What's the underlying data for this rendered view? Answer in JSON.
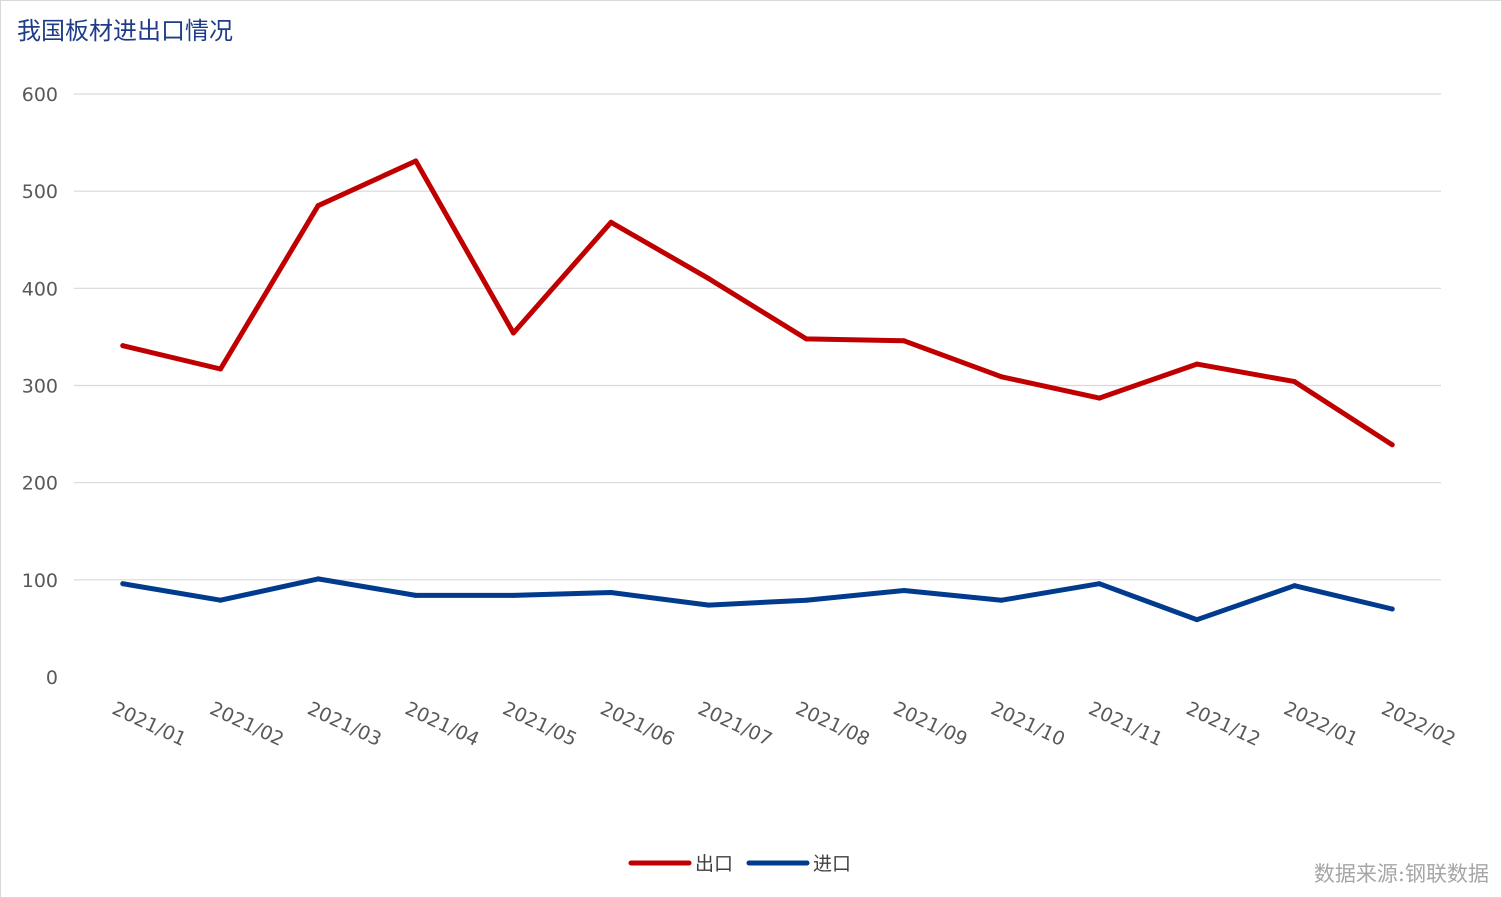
{
  "chart_data": {
    "type": "line",
    "title": "我国板材进出口情况",
    "xlabel": "",
    "ylabel": "",
    "categories": [
      "2021/01",
      "2021/02",
      "2021/03",
      "2021/04",
      "2021/05",
      "2021/06",
      "2021/07",
      "2021/08",
      "2021/09",
      "2021/10",
      "2021/11",
      "2021/12",
      "2022/01",
      "2022/02"
    ],
    "series": [
      {
        "name": "出口",
        "color": "#c00000",
        "values": [
          341,
          317,
          485,
          531,
          354,
          468,
          410,
          348,
          346,
          309,
          287,
          322,
          304,
          239
        ]
      },
      {
        "name": "进口",
        "color": "#003b8e",
        "values": [
          96,
          79,
          101,
          84,
          84,
          87,
          74,
          79,
          89,
          79,
          96,
          59,
          94,
          70
        ]
      }
    ],
    "ylim": [
      0,
      600
    ],
    "yticks": [
      0,
      100,
      200,
      300,
      400,
      500,
      600
    ],
    "grid": true,
    "legend_position": "bottom-center",
    "title_color": "#1f3c88",
    "source": "数据来源:钢联数据"
  }
}
